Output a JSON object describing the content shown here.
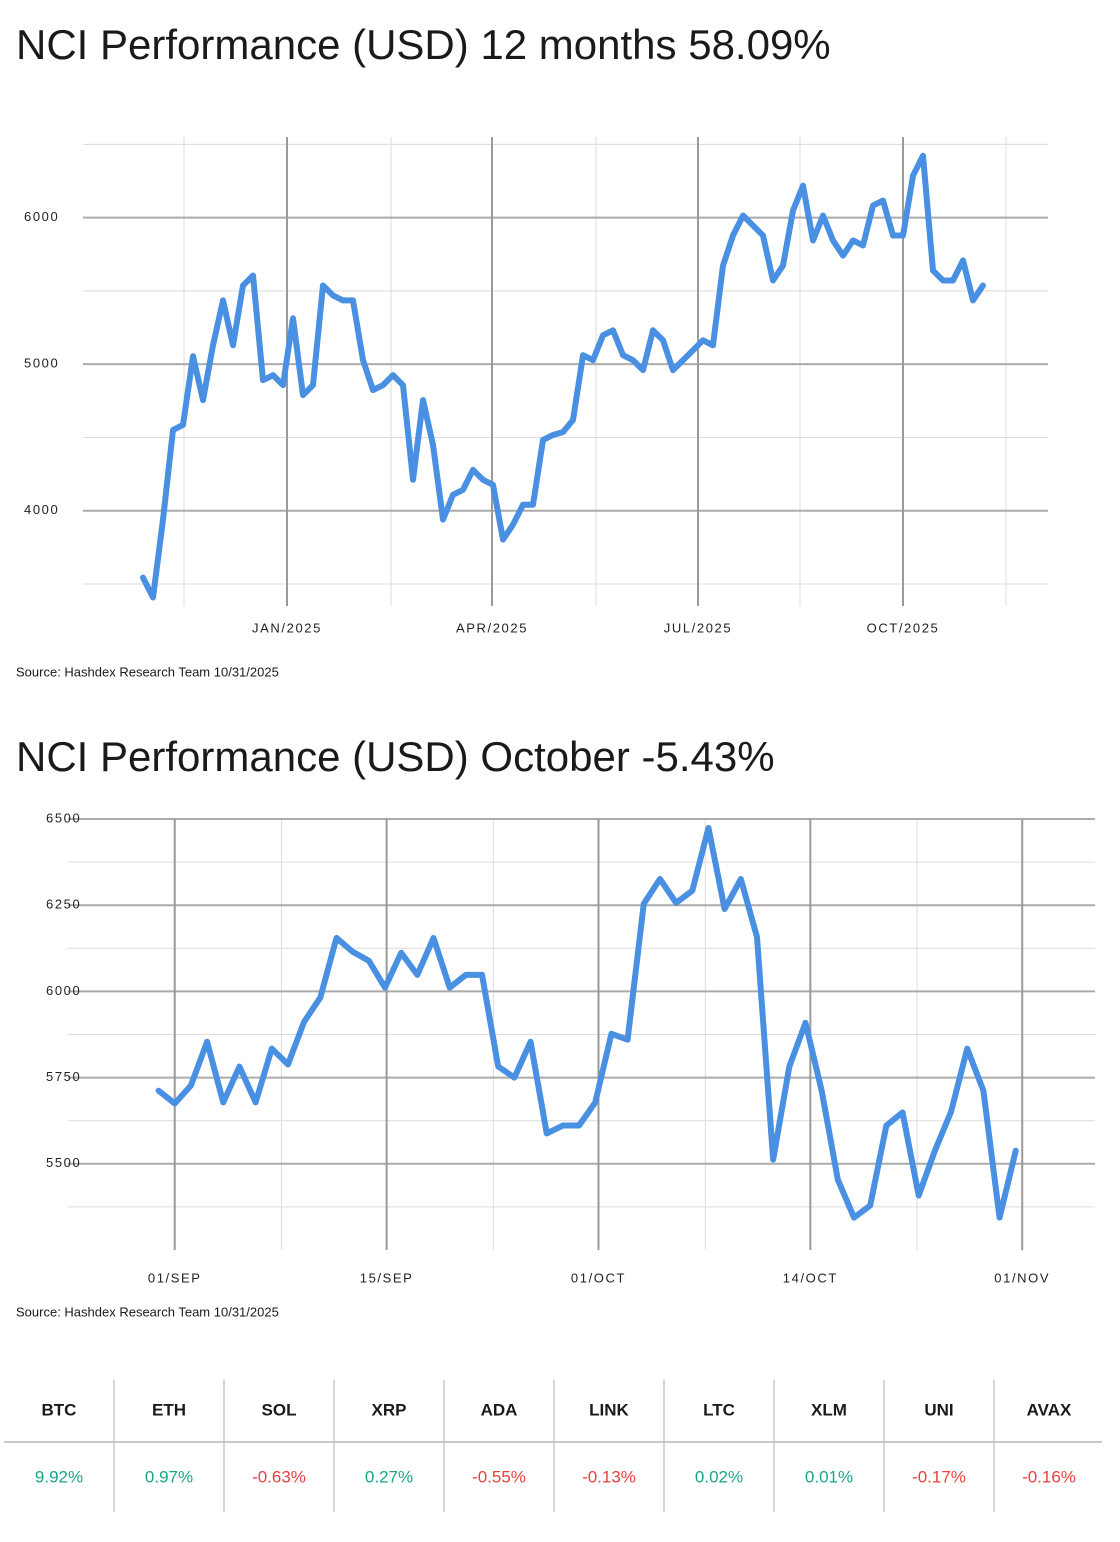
{
  "chart_data": [
    {
      "type": "line",
      "title": "NCI Performance (USD) 12 months 58.09%",
      "source": "Source: Hashdex Research Team 10/31/2025",
      "color": "#4a90e2",
      "grid": true,
      "values": [
        3544,
        3408,
        3939,
        4551,
        4585,
        5054,
        4755,
        5129,
        5435,
        5129,
        5537,
        5605,
        4891,
        4925,
        4857,
        5313,
        4789,
        4857,
        5537,
        5469,
        5435,
        5435,
        5027,
        4823,
        4857,
        4925,
        4857,
        4211,
        4755,
        4449,
        3939,
        4109,
        4143,
        4279,
        4211,
        4177,
        3803,
        3905,
        4041,
        4041,
        4483,
        4517,
        4537,
        4619,
        5061,
        5027,
        5197,
        5231,
        5061,
        5027,
        4959,
        5231,
        5163,
        4959,
        5027,
        5095,
        5163,
        5129,
        5673,
        5878,
        6014,
        5946,
        5878,
        5571,
        5673,
        6048,
        6218,
        5844,
        6014,
        5844,
        5741,
        5844,
        5810,
        6082,
        6116,
        5878,
        5878,
        6286,
        6422,
        5639,
        5571,
        5571,
        5708,
        5435,
        5537
      ],
      "xlim": [
        -6,
        90.5
      ],
      "xticks": [
        {
          "value": 14.4,
          "label": "JAN/2025"
        },
        {
          "value": 34.9,
          "label": "APR/2025"
        },
        {
          "value": 55.5,
          "label": "JUL/2025"
        },
        {
          "value": 76,
          "label": "OCT/2025"
        }
      ],
      "minor_xticks": [
        4.1,
        24.8,
        45.3,
        65.7,
        86.3
      ],
      "ylim": [
        3350,
        6550
      ],
      "yticks": [
        4000,
        5000,
        6000
      ],
      "minor_yticks": [
        3500,
        4500,
        5500,
        6500
      ]
    },
    {
      "type": "line",
      "title": "NCI Performance (USD) October -5.43%",
      "source": "Source: Hashdex Research Team 10/31/2025",
      "color": "#4a90e2",
      "grid": true,
      "values": [
        5712,
        5675,
        5727,
        5854,
        5678,
        5782,
        5678,
        5834,
        5788,
        5912,
        5982,
        6155,
        6115,
        6089,
        6011,
        6112,
        6048,
        6155,
        6011,
        6048,
        6048,
        5782,
        5750,
        5854,
        5588,
        5611,
        5611,
        5678,
        5877,
        5860,
        6254,
        6326,
        6257,
        6292,
        6474,
        6239,
        6326,
        6158,
        5512,
        5782,
        5909,
        5712,
        5454,
        5344,
        5379,
        5611,
        5649,
        5408,
        5538,
        5651,
        5834,
        5712,
        5344,
        5538
      ],
      "xlim": [
        -5.6,
        57.9
      ],
      "xticks": [
        {
          "value": 1,
          "label": "01/SEP"
        },
        {
          "value": 14.1,
          "label": "15/SEP"
        },
        {
          "value": 27.2,
          "label": "01/OCT"
        },
        {
          "value": 40.3,
          "label": "14/OCT"
        },
        {
          "value": 53.4,
          "label": "01/NOV"
        }
      ],
      "minor_xticks": [
        7.6,
        20.7,
        33.8,
        46.9
      ],
      "ylim": [
        5250,
        6500
      ],
      "yticks": [
        5500,
        5750,
        6000,
        6250,
        6500
      ],
      "minor_yticks": [
        5375,
        5625,
        5875,
        6125,
        6375
      ]
    }
  ],
  "table": {
    "headers": [
      "BTC",
      "ETH",
      "SOL",
      "XRP",
      "ADA",
      "LINK",
      "LTC",
      "XLM",
      "UNI",
      "AVAX"
    ],
    "rows": [
      [
        "9.92%",
        "0.97%",
        "-0.63%",
        "0.27%",
        "-0.55%",
        "-0.13%",
        "0.02%",
        "0.01%",
        "-0.17%",
        "-0.16%"
      ]
    ],
    "up_color": "#1aa58a",
    "down_color": "#e8413e"
  }
}
